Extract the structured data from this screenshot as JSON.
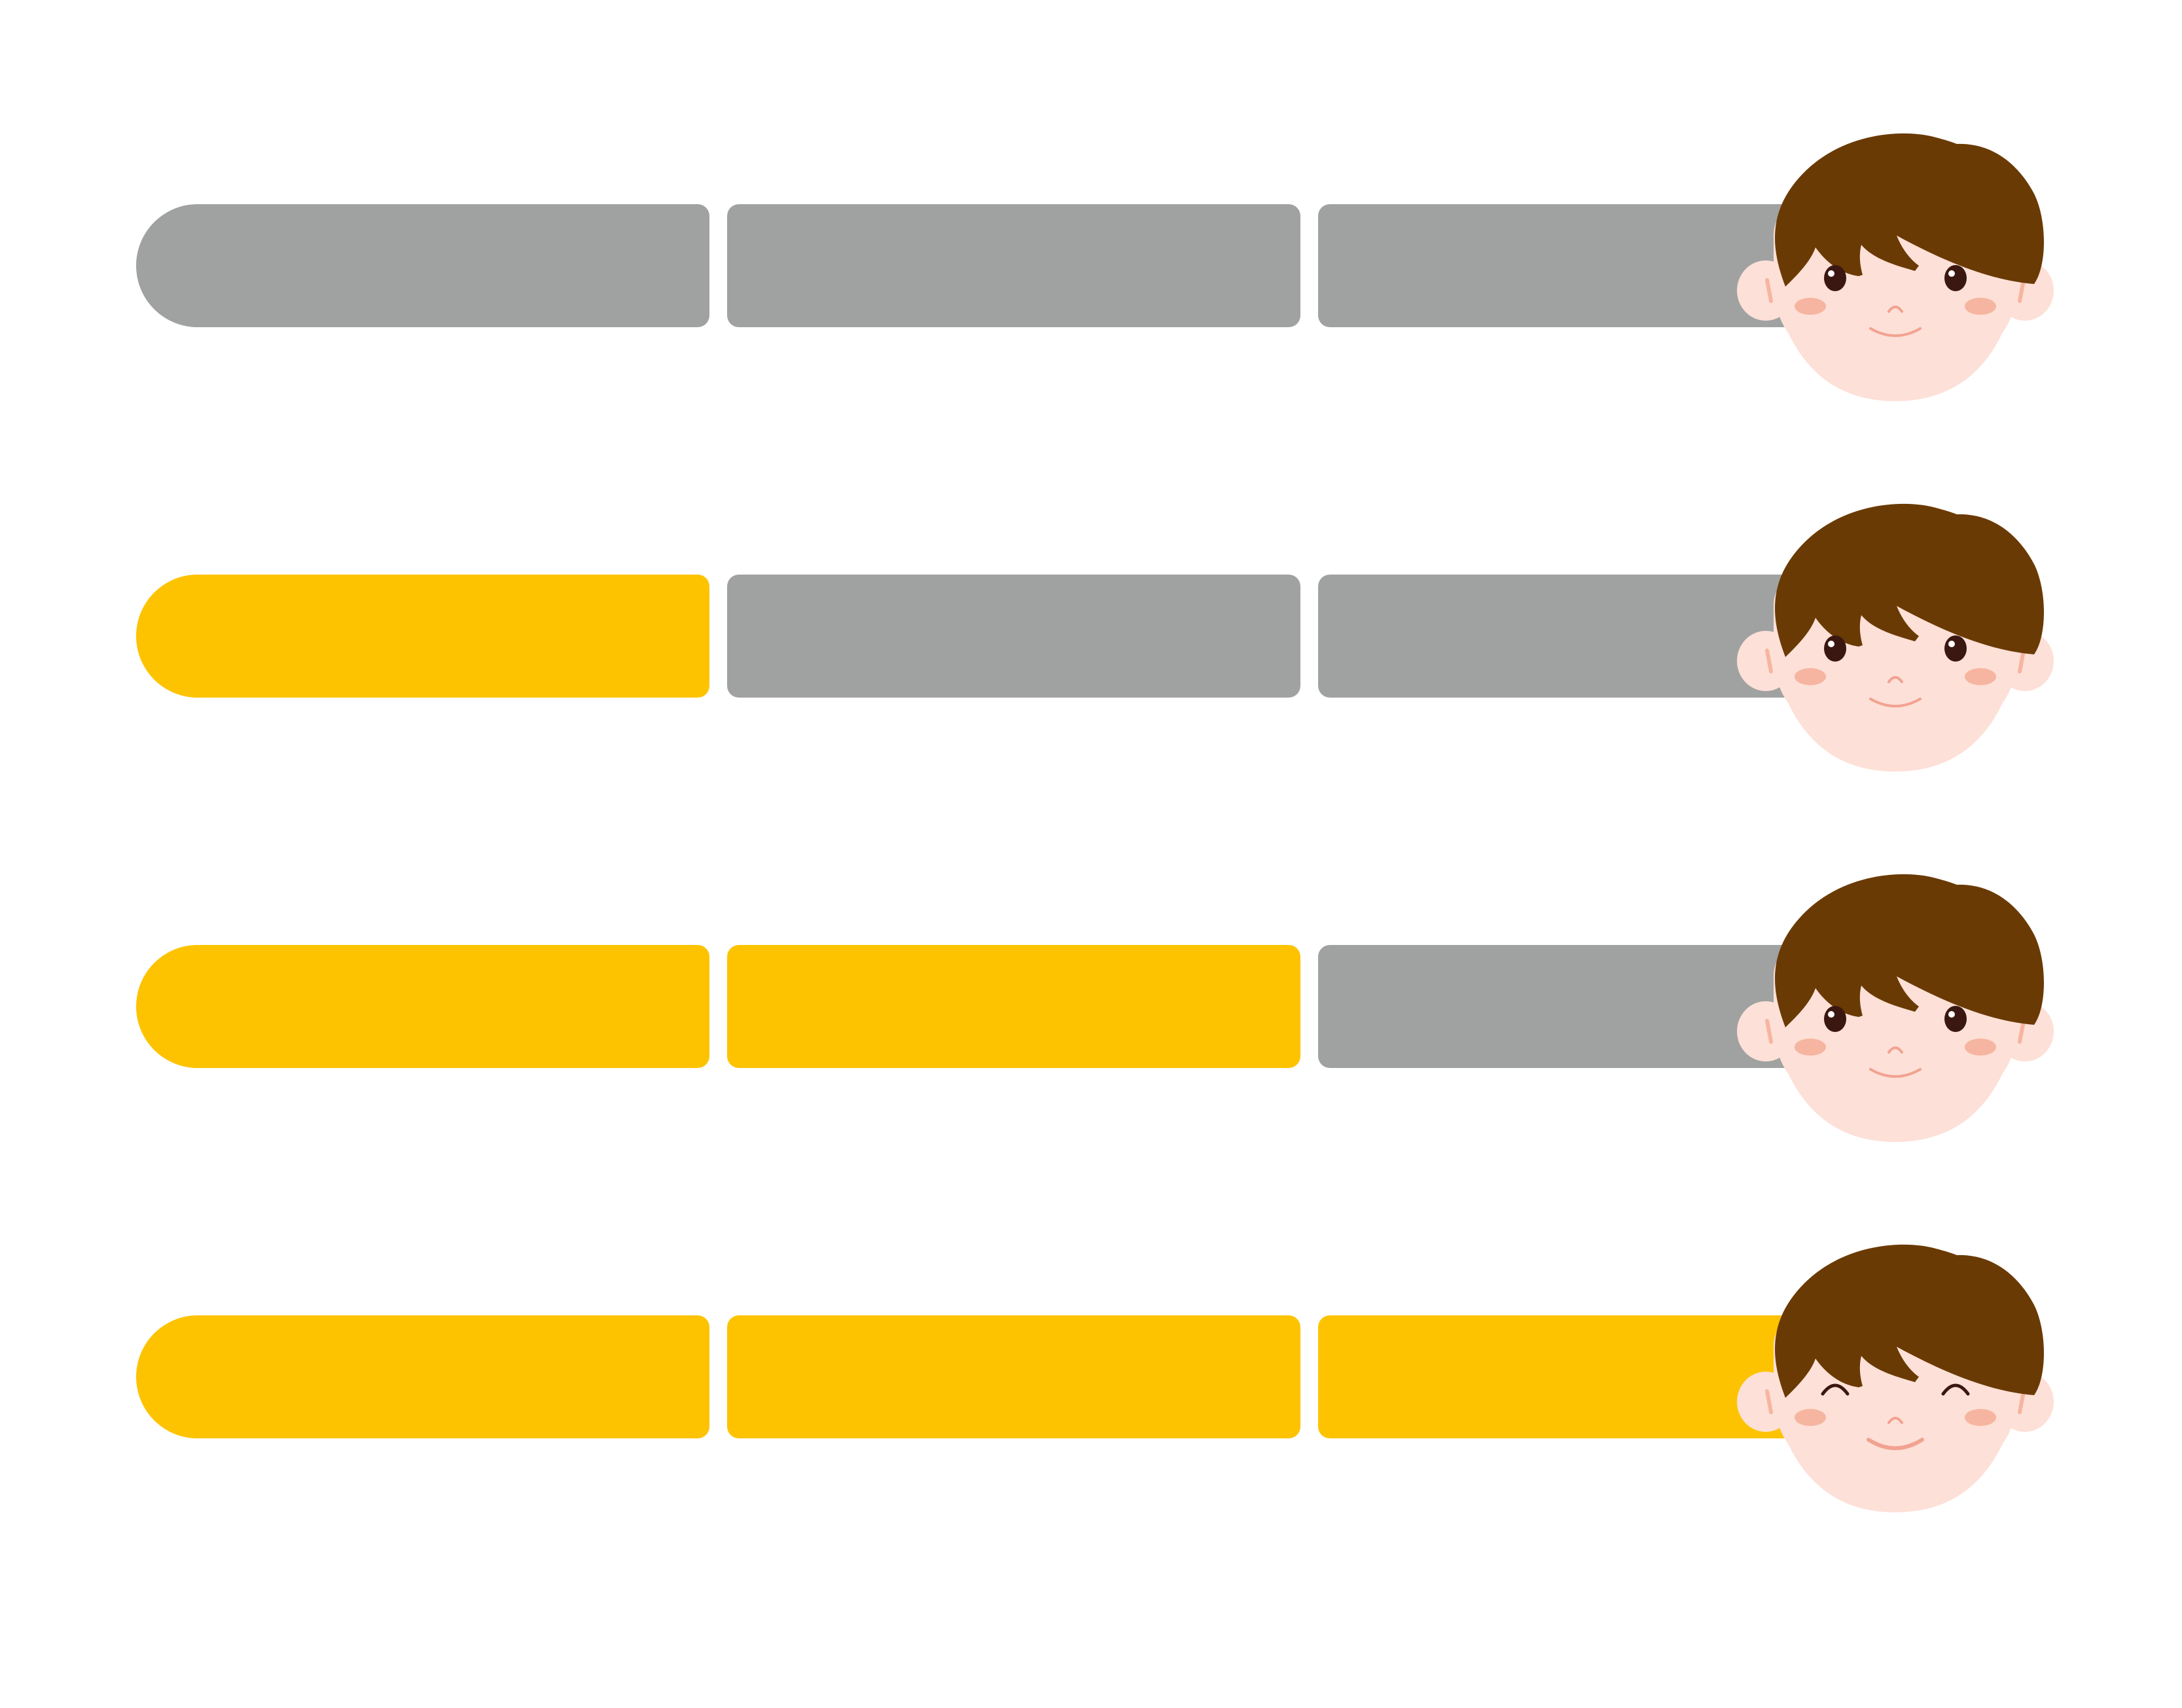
{
  "colors": {
    "filled": "#fdc300",
    "empty": "#a0a2a1",
    "hair": "#6a3a04",
    "skin": "#fde0d7",
    "cheek": "#f6b5a0",
    "eye": "#3b1712",
    "mouth": "#f2a291"
  },
  "rows": [
    {
      "filled_segments": 0,
      "total_segments": 3,
      "eyes": "open"
    },
    {
      "filled_segments": 1,
      "total_segments": 3,
      "eyes": "open"
    },
    {
      "filled_segments": 2,
      "total_segments": 3,
      "eyes": "open"
    },
    {
      "filled_segments": 3,
      "total_segments": 3,
      "eyes": "closed-smile"
    }
  ]
}
